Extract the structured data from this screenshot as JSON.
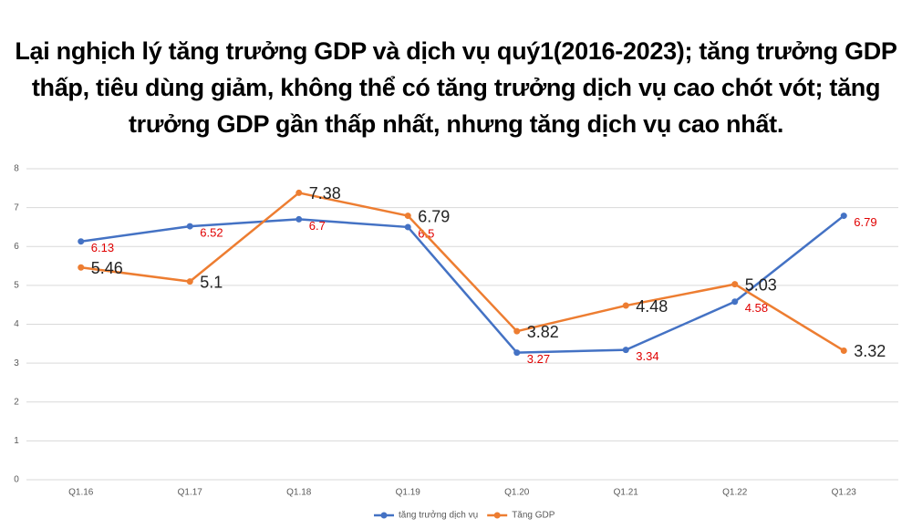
{
  "chart_data": {
    "type": "line",
    "title": "Lại nghịch lý tăng trưởng GDP và dịch vụ quý1(2016-2023); tăng trưởng GDP thấp, tiêu dùng giảm, không thể có tăng trưởng dịch vụ cao chót vót; tăng trưởng GDP gần thấp nhất, nhưng tăng dịch vụ cao nhất.",
    "categories": [
      "Q1.16",
      "Q1.17",
      "Q1.18",
      "Q1.19",
      "Q1.20",
      "Q1.21",
      "Q1.22",
      "Q1.23"
    ],
    "series": [
      {
        "name": "tăng trưởng dịch vụ",
        "color": "#4472c4",
        "label_color": "#e00000",
        "values": [
          6.13,
          6.52,
          6.7,
          6.5,
          3.27,
          3.34,
          4.58,
          6.79
        ]
      },
      {
        "name": "Tăng GDP",
        "color": "#ed7d31",
        "label_color": "#222222",
        "values": [
          5.46,
          5.1,
          7.38,
          6.79,
          3.82,
          4.48,
          5.03,
          3.32
        ]
      }
    ],
    "ylim": [
      0,
      8
    ],
    "yticks": [
      0,
      1,
      2,
      3,
      4,
      5,
      6,
      7,
      8
    ],
    "grid": true,
    "legend": "bottom"
  }
}
